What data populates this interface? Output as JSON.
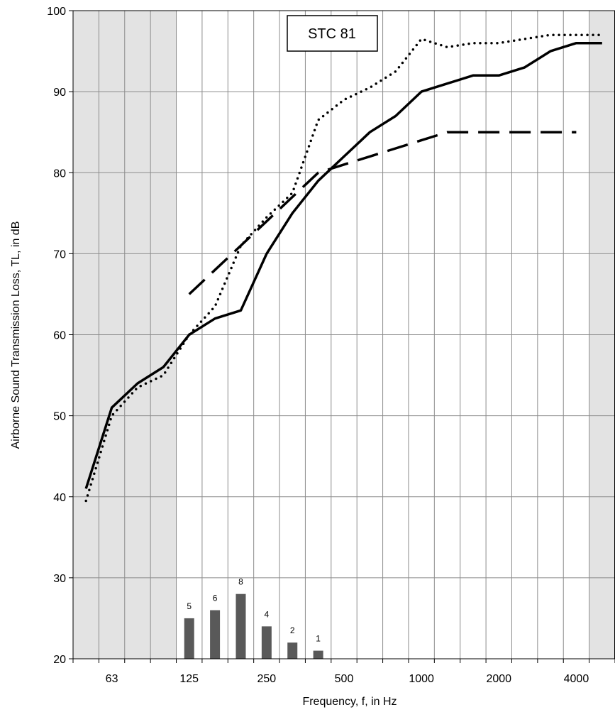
{
  "chart_data": {
    "type": "line",
    "xlabel": "Frequency, f, in Hz",
    "ylabel": "Airborne Sound Transmission Loss, TL, in dB",
    "ylim": [
      20,
      100
    ],
    "yticks": [
      20,
      30,
      40,
      50,
      60,
      70,
      80,
      90,
      100
    ],
    "x_bands": [
      "50",
      "63",
      "80",
      "100",
      "125",
      "160",
      "200",
      "250",
      "315",
      "400",
      "500",
      "630",
      "800",
      "1000",
      "1250",
      "1600",
      "2000",
      "2500",
      "3150",
      "4000",
      "5000"
    ],
    "xtick_labels": [
      "63",
      "125",
      "250",
      "500",
      "1000",
      "2000",
      "4000"
    ],
    "shaded_bands_left": [
      "50",
      "63",
      "80",
      "100"
    ],
    "shaded_bands_right": [
      "5000"
    ],
    "grid": true,
    "annotation": "STC 81",
    "series": [
      {
        "style": "solid",
        "color": "#000000",
        "x": [
          "50",
          "63",
          "80",
          "100",
          "125",
          "160",
          "200",
          "250",
          "315",
          "400",
          "500",
          "630",
          "800",
          "1000",
          "1250",
          "1600",
          "2000",
          "2500",
          "3150",
          "4000",
          "5000"
        ],
        "values": [
          41,
          51,
          54,
          56,
          60,
          62,
          63,
          70,
          75,
          79,
          82,
          85,
          87,
          90,
          91,
          92,
          92,
          93,
          95,
          96,
          96
        ]
      },
      {
        "style": "dotted",
        "color": "#000000",
        "x": [
          "50",
          "63",
          "80",
          "100",
          "125",
          "160",
          "200",
          "250",
          "315",
          "400",
          "500",
          "630",
          "800",
          "1000",
          "1250",
          "1600",
          "2000",
          "2500",
          "3150",
          "4000",
          "5000"
        ],
        "values": [
          39.5,
          50,
          53.5,
          55,
          60,
          63.5,
          71,
          74.5,
          77.5,
          86.5,
          89,
          90.5,
          92.5,
          96.5,
          95.5,
          96,
          96,
          96.5,
          97,
          97,
          97
        ]
      },
      {
        "style": "dashed",
        "color": "#000000",
        "x": [
          "125",
          "160",
          "200",
          "250",
          "315",
          "400",
          "500",
          "630",
          "800",
          "1000",
          "1250",
          "1600",
          "2000",
          "2500",
          "3150",
          "4000"
        ],
        "values": [
          65,
          68,
          71,
          74,
          77,
          80,
          81,
          82,
          83,
          84,
          85,
          85,
          85,
          85,
          85,
          85
        ]
      }
    ],
    "deficiencies": {
      "type": "bar",
      "color": "#595959",
      "x": [
        "125",
        "160",
        "200",
        "250",
        "315",
        "400"
      ],
      "values": [
        5,
        6,
        8,
        4,
        2,
        1
      ],
      "labels": [
        "5",
        "6",
        "8",
        "4",
        "2",
        "1"
      ]
    }
  }
}
